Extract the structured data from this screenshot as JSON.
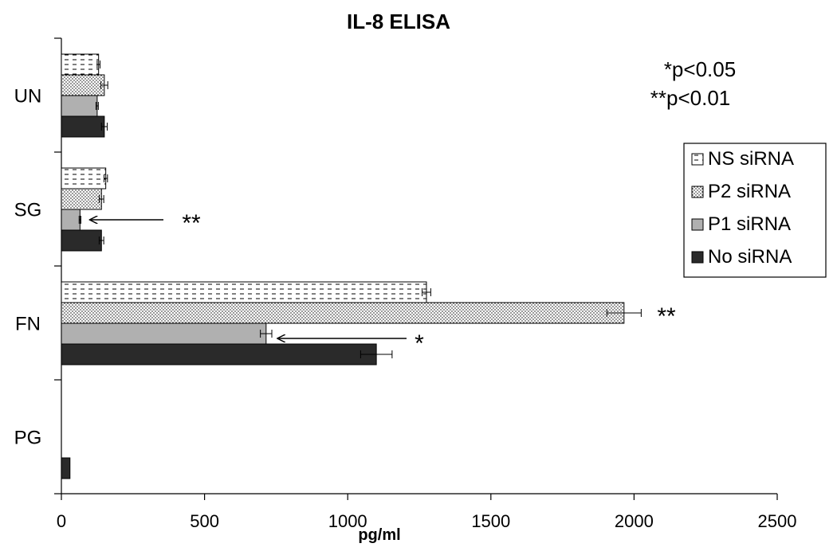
{
  "chart_data": {
    "type": "bar",
    "orientation": "horizontal",
    "title": "IL-8 ELISA",
    "xlabel": "pg/ml",
    "ylabel": "",
    "xlim": [
      0,
      2500
    ],
    "xticks": [
      "0",
      "500",
      "1000",
      "1500",
      "2000",
      "2500"
    ],
    "categories": [
      "UN",
      "SG",
      "FN",
      "PG"
    ],
    "series": [
      {
        "name": "NS siRNA",
        "pattern": "dashes",
        "values": [
          130,
          155,
          null,
          null
        ],
        "errors": [
          5,
          6,
          15,
          null
        ]
      },
      {
        "name": "P2 siRNA",
        "pattern": "dots",
        "values": [
          150,
          140,
          1965,
          null
        ],
        "errors": [
          12,
          8,
          60,
          null
        ]
      },
      {
        "name": "P1 siRNA",
        "pattern": "gray",
        "color": "#b0b0b0",
        "values": [
          125,
          65,
          715,
          null
        ],
        "errors": [
          4,
          3,
          20,
          null
        ]
      },
      {
        "name": "No siRNA",
        "pattern": "solid",
        "color": "#2a2a2a",
        "values": [
          150,
          140,
          1100,
          30
        ],
        "errors": [
          10,
          8,
          55,
          null
        ]
      }
    ],
    "fn_ns_value": 1275,
    "annotations": [
      {
        "text": "*p<0.05",
        "position": "top-right"
      },
      {
        "text": "**p<0.01",
        "position": "top-right"
      },
      {
        "text": "**",
        "target": "SG / P1 siRNA",
        "arrow": true
      },
      {
        "text": "**",
        "target": "FN / P2 siRNA",
        "arrow": false
      },
      {
        "text": "*",
        "target": "FN / P1 siRNA",
        "arrow": true
      }
    ],
    "legend_position": "right",
    "grid": false
  }
}
